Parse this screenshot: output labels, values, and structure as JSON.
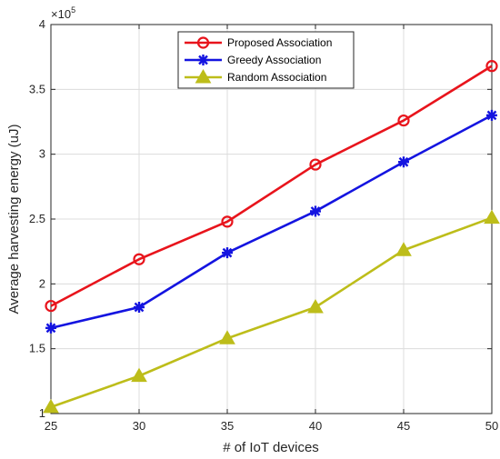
{
  "chart_data": {
    "type": "line",
    "title": "",
    "xlabel": "# of IoT devices",
    "ylabel": "Average harvesting energy (uJ)",
    "y_exponent_label": "×10",
    "y_exponent_power": "5",
    "x": [
      25,
      30,
      35,
      40,
      45,
      50
    ],
    "x_ticks": [
      "25",
      "30",
      "35",
      "40",
      "45",
      "50"
    ],
    "xlim": [
      25,
      50
    ],
    "y_ticks": [
      1,
      1.5,
      2,
      2.5,
      3,
      3.5,
      4
    ],
    "y_tick_labels": [
      "1",
      "1.5",
      "2",
      "2.5",
      "3",
      "3.5",
      "4"
    ],
    "ylim": [
      1,
      4
    ],
    "grid": true,
    "legend_position": "top-center",
    "series": [
      {
        "name": "Proposed Association",
        "values": [
          1.83,
          2.19,
          2.48,
          2.92,
          3.26,
          3.68
        ],
        "color": "#e8141c",
        "marker": "circle"
      },
      {
        "name": "Greedy Association",
        "values": [
          1.66,
          1.82,
          2.24,
          2.56,
          2.94,
          3.3
        ],
        "color": "#1414e0",
        "marker": "asterisk"
      },
      {
        "name": "Random Association",
        "values": [
          1.05,
          1.29,
          1.58,
          1.82,
          2.26,
          2.51
        ],
        "color": "#bdbd1a",
        "marker": "triangle"
      }
    ]
  }
}
